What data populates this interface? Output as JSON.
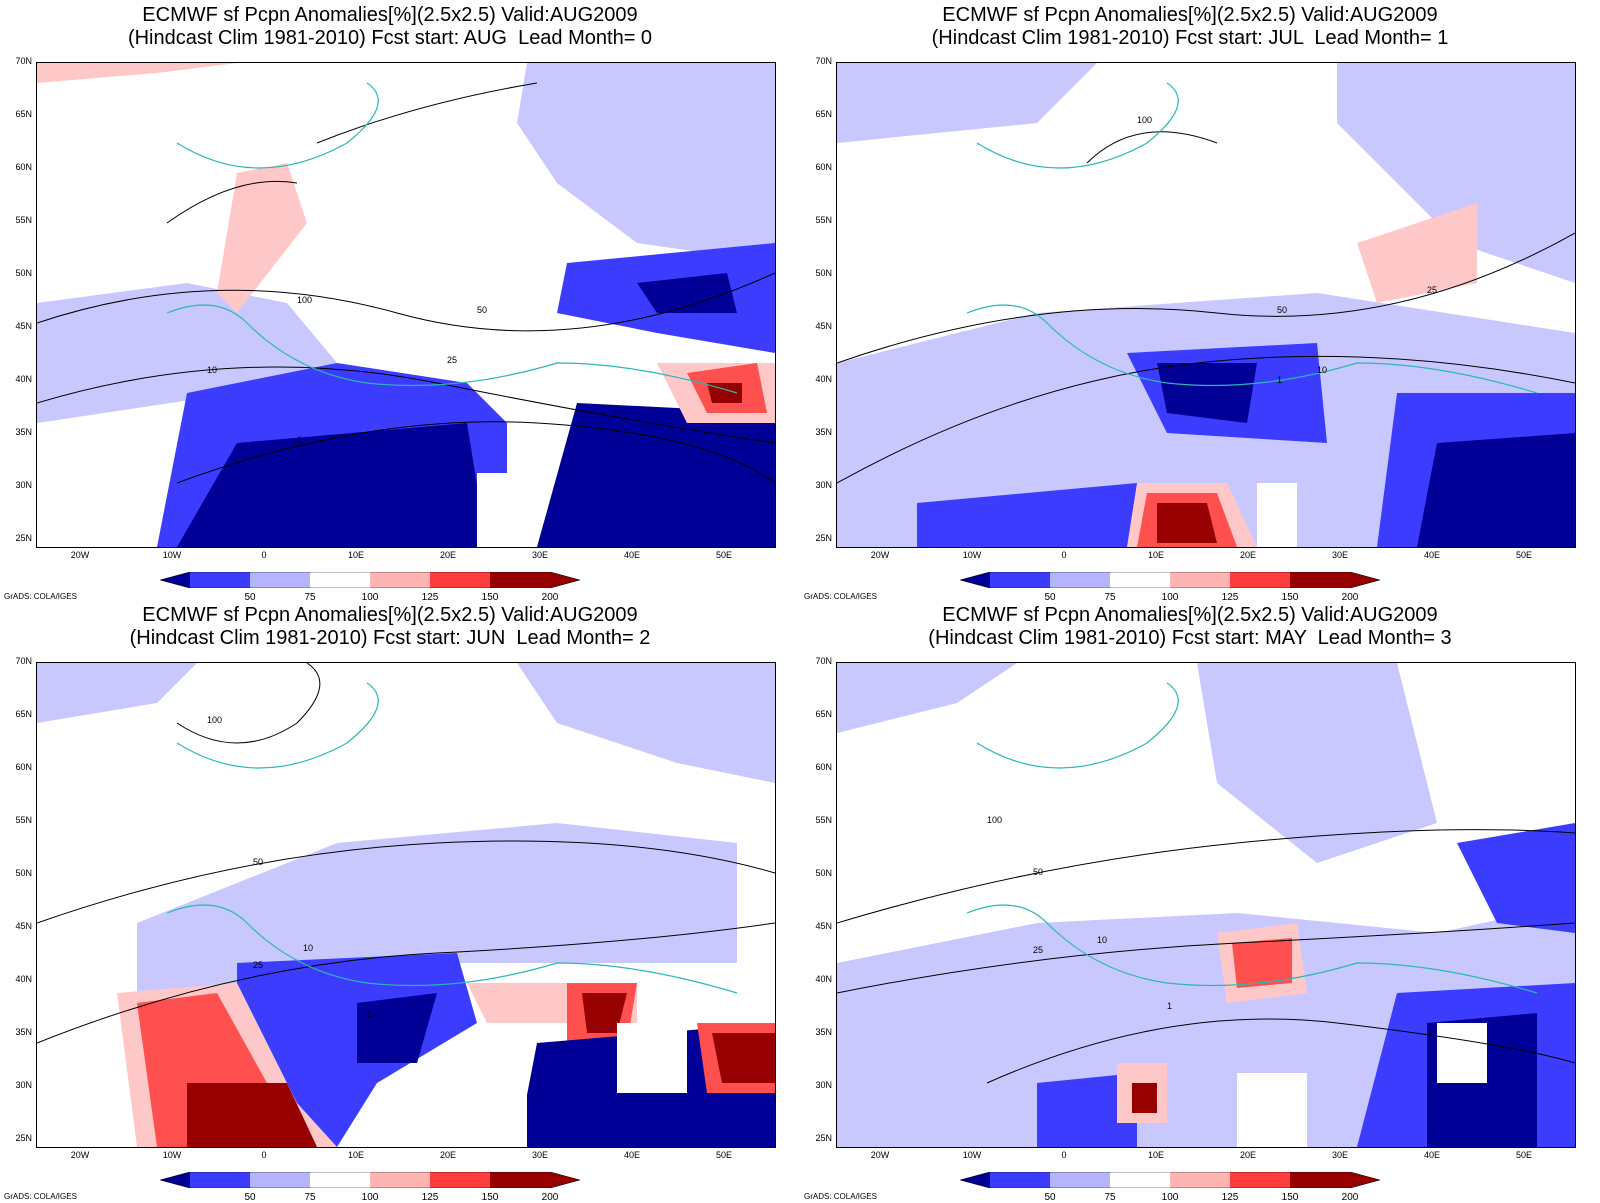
{
  "panels": [
    {
      "line1": "ECMWF sf Pcpn Anomalies[%](2.5x2.5) Valid:AUG2009",
      "line2": "(Hindcast Clim 1981-2010) Fcst start: AUG  Lead Month= 0"
    },
    {
      "line1": "ECMWF sf Pcpn Anomalies[%](2.5x2.5) Valid:AUG2009",
      "line2": "(Hindcast Clim 1981-2010) Fcst start: JUL  Lead Month= 1"
    },
    {
      "line1": "ECMWF sf Pcpn Anomalies[%](2.5x2.5) Valid:AUG2009",
      "line2": "(Hindcast Clim 1981-2010) Fcst start: JUN  Lead Month= 2"
    },
    {
      "line1": "ECMWF sf Pcpn Anomalies[%](2.5x2.5) Valid:AUG2009",
      "line2": "(Hindcast Clim 1981-2010) Fcst start: MAY  Lead Month= 3"
    }
  ],
  "lat_labels": [
    "70N",
    "65N",
    "60N",
    "55N",
    "50N",
    "45N",
    "40N",
    "35N",
    "30N",
    "25N"
  ],
  "lon_labels": [
    "20W",
    "10W",
    "0",
    "10E",
    "20E",
    "30E",
    "40E",
    "50E"
  ],
  "colorbar": {
    "labels": [
      "50",
      "75",
      "100",
      "125",
      "150",
      "200"
    ],
    "colors": [
      "#000096",
      "#3c3cff",
      "#b4b4ff",
      "#ffffff",
      "#ffb4b4",
      "#ff3c3c",
      "#960000"
    ]
  },
  "grads_credit": "GrADS: COLA/IGES",
  "contour_labels": [
    "1",
    "10",
    "25",
    "50",
    "100"
  ],
  "colors": {
    "deep_blue": "#000096",
    "mid_blue": "#3c3cff",
    "light_blue": "#c8c8ff",
    "light_red": "#ffc8c8",
    "mid_red": "#ff5050",
    "deep_red": "#960000",
    "coast": "#00c8c8",
    "contour": "#000000"
  }
}
